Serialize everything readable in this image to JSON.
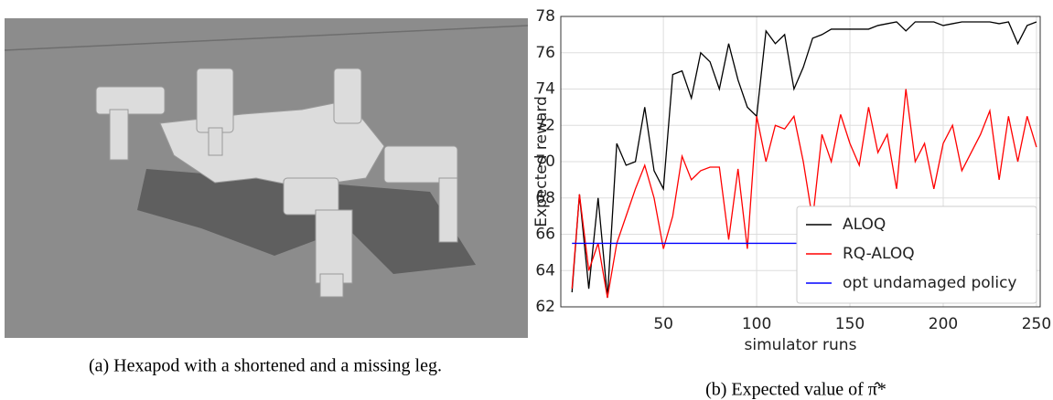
{
  "captions": {
    "a": "(a) Hexapod with a shortened and a missing leg.",
    "b": "(b) Expected value of π̂*"
  },
  "chart_data": {
    "type": "line",
    "xlabel": "simulator runs",
    "ylabel": "Expected reward",
    "xlim": [
      -5,
      252
    ],
    "ylim": [
      62,
      78
    ],
    "xticks": [
      50,
      100,
      150,
      200,
      250
    ],
    "yticks": [
      62,
      64,
      66,
      68,
      70,
      72,
      74,
      76,
      78
    ],
    "grid": true,
    "legend": "lower right",
    "series": [
      {
        "name": "ALOQ",
        "color": "#000000",
        "x": [
          1,
          5,
          10,
          15,
          20,
          25,
          30,
          35,
          40,
          45,
          50,
          55,
          60,
          65,
          70,
          75,
          80,
          85,
          90,
          95,
          100,
          105,
          110,
          115,
          120,
          125,
          130,
          135,
          140,
          145,
          150,
          155,
          160,
          165,
          170,
          175,
          180,
          185,
          190,
          195,
          200,
          205,
          210,
          215,
          220,
          225,
          230,
          235,
          240,
          245,
          250
        ],
        "values": [
          62.8,
          68.2,
          63,
          68,
          62.5,
          71,
          69.8,
          70,
          73,
          69.5,
          68.5,
          74.8,
          75,
          73.5,
          76,
          75.5,
          74,
          76.5,
          74.5,
          73,
          72.5,
          77.2,
          76.5,
          77,
          74,
          75.2,
          76.8,
          77,
          77.3,
          77.3,
          77.3,
          77.3,
          77.3,
          77.5,
          77.6,
          77.7,
          77.2,
          77.7,
          77.7,
          77.7,
          77.5,
          77.6,
          77.7,
          77.7,
          77.7,
          77.7,
          77.6,
          77.7,
          76.5,
          77.5,
          77.7
        ]
      },
      {
        "name": "RQ-ALOQ",
        "color": "#ff0000",
        "x": [
          1,
          5,
          10,
          15,
          20,
          25,
          30,
          35,
          40,
          45,
          50,
          55,
          60,
          65,
          70,
          75,
          80,
          85,
          90,
          95,
          100,
          105,
          110,
          115,
          120,
          125,
          130,
          135,
          140,
          145,
          150,
          155,
          160,
          165,
          170,
          175,
          180,
          185,
          190,
          195,
          200,
          205,
          210,
          215,
          220,
          225,
          230,
          235,
          240,
          245,
          250
        ],
        "values": [
          63,
          68.2,
          64,
          65.5,
          62.5,
          65.5,
          67,
          68.5,
          69.8,
          68,
          65.2,
          67,
          70.3,
          69,
          69.5,
          69.7,
          69.7,
          65.7,
          69.6,
          65.2,
          72.5,
          70,
          72,
          71.8,
          72.5,
          70,
          66.8,
          71.5,
          70,
          72.6,
          71,
          69.8,
          73,
          70.5,
          71.5,
          68.5,
          74,
          70,
          71,
          68.5,
          71,
          72,
          69.5,
          70.5,
          71.5,
          72.8,
          69,
          72.5,
          70,
          72.5,
          70.8
        ]
      },
      {
        "name": "opt undamaged policy",
        "color": "#0000ff",
        "x": [
          1,
          250
        ],
        "values": [
          65.5,
          65.5
        ]
      }
    ]
  }
}
